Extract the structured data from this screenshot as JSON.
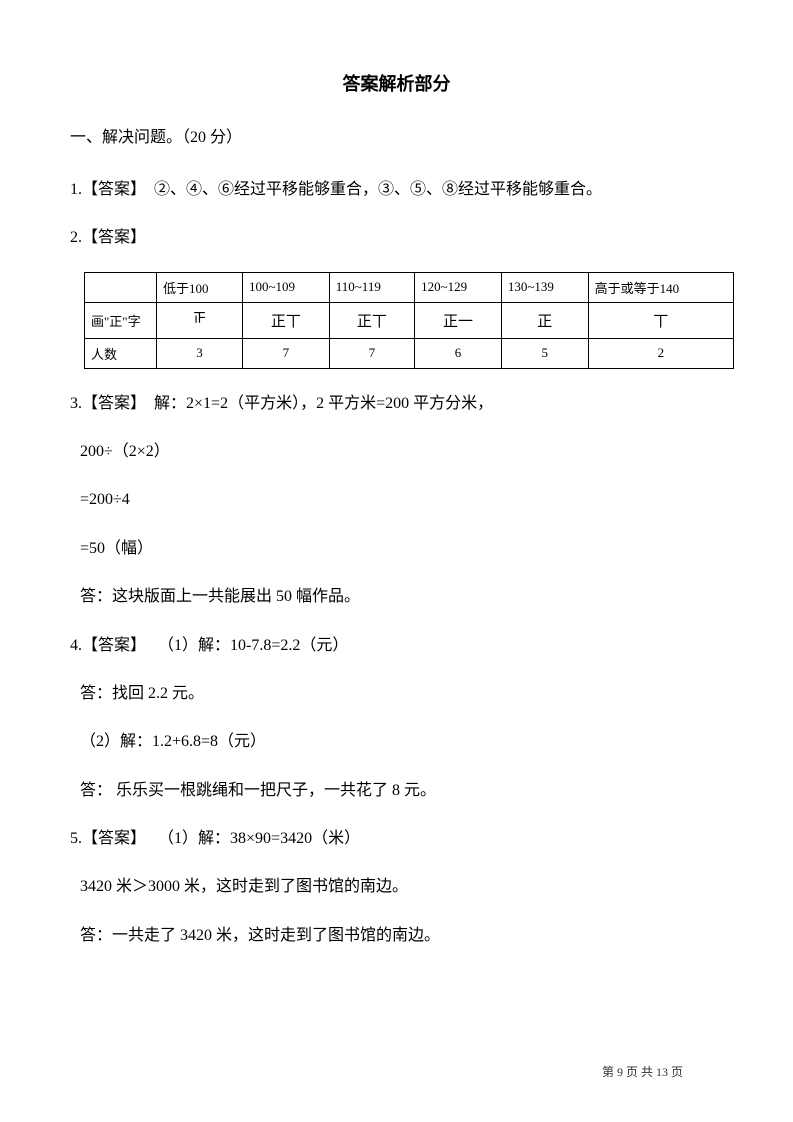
{
  "title": "答案解析部分",
  "section_header": "一、解决问题。（20 分）",
  "q1": {
    "label": "1.【答案】",
    "text": "②、④、⑥经过平移能够重合，③、⑤、⑧经过平移能够重合。"
  },
  "q2": {
    "label": "2.【答案】",
    "table": {
      "headers": [
        "",
        "低于100",
        "100~109",
        "110~119",
        "120~129",
        "130~139",
        "高于或等于140"
      ],
      "row1_label": "画\"正\"字",
      "row1_tally": [
        "𝍵",
        "正丅",
        "正丅",
        "正一",
        "正",
        "丅"
      ],
      "row2_label": "人数",
      "row2_values": [
        "3",
        "7",
        "7",
        "6",
        "5",
        "2"
      ]
    }
  },
  "q3": {
    "label": "3.【答案】",
    "line1": "解：2×1=2（平方米），2 平方米=200 平方分米，",
    "line2": "200÷（2×2）",
    "line3": "=200÷4",
    "line4": "=50（幅）",
    "line5": "答：这块版面上一共能展出 50 幅作品。"
  },
  "q4": {
    "label": "4.【答案】",
    "line1": "（1）解：10-7.8=2.2（元）",
    "line2": "答：找回 2.2 元。",
    "line3": "（2）解：1.2+6.8=8（元）",
    "line4": "答：  乐乐买一根跳绳和一把尺子，一共花了 8 元。"
  },
  "q5": {
    "label": "5.【答案】",
    "line1": "（1）解：38×90=3420（米）",
    "line2": "3420 米＞3000 米，这时走到了图书馆的南边。",
    "line3": "答：一共走了 3420 米，这时走到了图书馆的南边。"
  },
  "footer": {
    "prefix": "第 ",
    "current": "9",
    "mid": " 页 共 ",
    "total": "13",
    "suffix": " 页"
  }
}
